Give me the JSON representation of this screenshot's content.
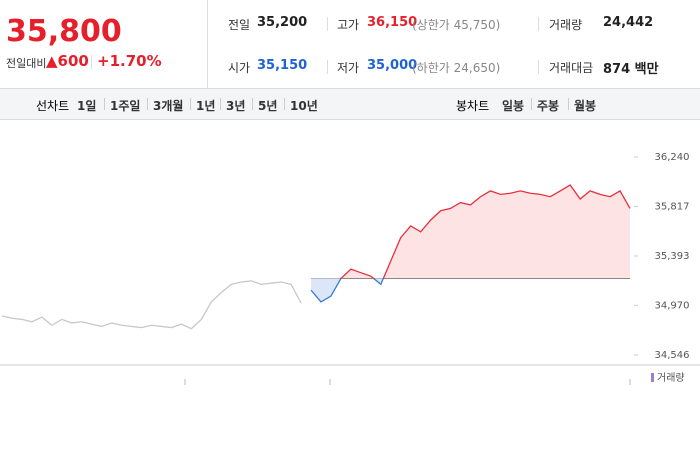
{
  "quote": {
    "price": "35,800",
    "change_label": "전일대비",
    "change": "▲600",
    "change_pct": "+1.70%"
  },
  "stats": [
    {
      "label": "전일",
      "value": "35,200"
    },
    {
      "label": "고가",
      "value": "36,150",
      "note": "(상한가 45,750)"
    },
    {
      "label": "거래량",
      "value": "24,442"
    },
    {
      "label": "시가",
      "value": "35,150"
    },
    {
      "label": "저가",
      "value": "35,000",
      "note": "(하한가 24,650)"
    },
    {
      "label": "거래대금",
      "value": "874 백만"
    }
  ],
  "tabs": {
    "line_label": "선차트",
    "line": [
      "1일",
      "1주일",
      "3개월",
      "1년",
      "3년",
      "5년",
      "10년"
    ],
    "candle_label": "봉차트",
    "candle": [
      "일봉",
      "주봉",
      "월봉"
    ]
  },
  "chart_data": {
    "type": "line",
    "baseline": 35200,
    "grid": false,
    "ylim": [
      34460,
      36471
    ],
    "yticks": [
      {
        "value": 34546,
        "label": "34,546"
      },
      {
        "value": 34970,
        "label": "34,970"
      },
      {
        "value": 35393,
        "label": "35,393"
      },
      {
        "value": 35817,
        "label": "35,817"
      },
      {
        "value": 36240,
        "label": "36,240"
      }
    ],
    "series": [
      {
        "color": "#c8c8c8",
        "values": [
          34880,
          34860,
          34850,
          34830,
          34870,
          34800,
          34850,
          34820,
          34830,
          34810,
          34790,
          34820,
          34800,
          34790,
          34780,
          34800,
          34790,
          34780,
          34810,
          34770,
          34850,
          35000,
          35080,
          35150,
          35170,
          35180,
          35150,
          35160,
          35170,
          35150,
          34990,
          null,
          null,
          null,
          null,
          null,
          null,
          null,
          null,
          null,
          null,
          null,
          null,
          null,
          null,
          null,
          null,
          null,
          null,
          null,
          null,
          null,
          null,
          null,
          null,
          null,
          null,
          null,
          null,
          null,
          null,
          null,
          null,
          null
        ]
      },
      {
        "color": "#e8303a",
        "down_color": "#3a78d8",
        "fill": "#fde3e4",
        "values": [
          null,
          null,
          null,
          null,
          null,
          null,
          null,
          null,
          null,
          null,
          null,
          null,
          null,
          null,
          null,
          null,
          null,
          null,
          null,
          null,
          null,
          null,
          null,
          null,
          null,
          null,
          null,
          null,
          null,
          null,
          null,
          35100,
          35000,
          35050,
          35200,
          35280,
          35250,
          35220,
          35150,
          35350,
          35550,
          35650,
          35600,
          35700,
          35780,
          35800,
          35850,
          35830,
          35900,
          35950,
          35920,
          35930,
          35950,
          35930,
          35920,
          35900,
          35950,
          36000,
          35880,
          35950,
          35920,
          35900,
          35950,
          35800
        ]
      }
    ],
    "legend": "거래량"
  }
}
